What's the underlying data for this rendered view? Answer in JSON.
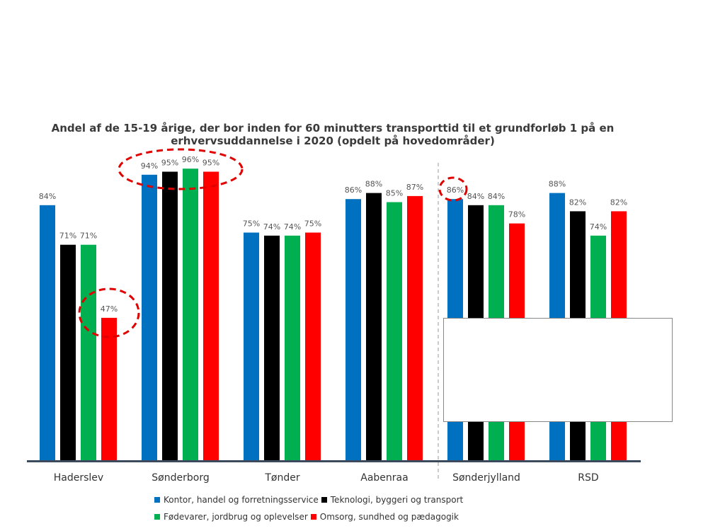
{
  "chart_data": {
    "type": "bar",
    "title": "Andel af de 15-19 årige, der bor inden for 60 minutters transporttid til et grundforløb 1 på en erhvervsuddannelse i 2020 (opdelt på hovedområder)",
    "categories": [
      "Haderslev",
      "Sønderborg",
      "Tønder",
      "Aabenraa",
      "Sønderjylland",
      "RSD"
    ],
    "series": [
      {
        "name": "Kontor, handel og forretningsservice",
        "color": "#0070C0",
        "values": [
          84,
          94,
          75,
          86,
          86,
          88
        ]
      },
      {
        "name": "Teknologi, byggeri og transport",
        "color": "#000000",
        "values": [
          71,
          95,
          74,
          88,
          84,
          82
        ]
      },
      {
        "name": "Fødevarer, jordbrug og oplevelser",
        "color": "#00B050",
        "values": [
          71,
          96,
          74,
          85,
          84,
          74
        ]
      },
      {
        "name": "Omsorg, sundhed og pædagogik",
        "color": "#FF0000",
        "values": [
          47,
          95,
          75,
          87,
          78,
          82
        ]
      }
    ],
    "value_suffix": "%",
    "ylim": [
      0,
      100
    ],
    "grid": false,
    "legend_position": "bottom",
    "highlight_color": "#E00000"
  }
}
